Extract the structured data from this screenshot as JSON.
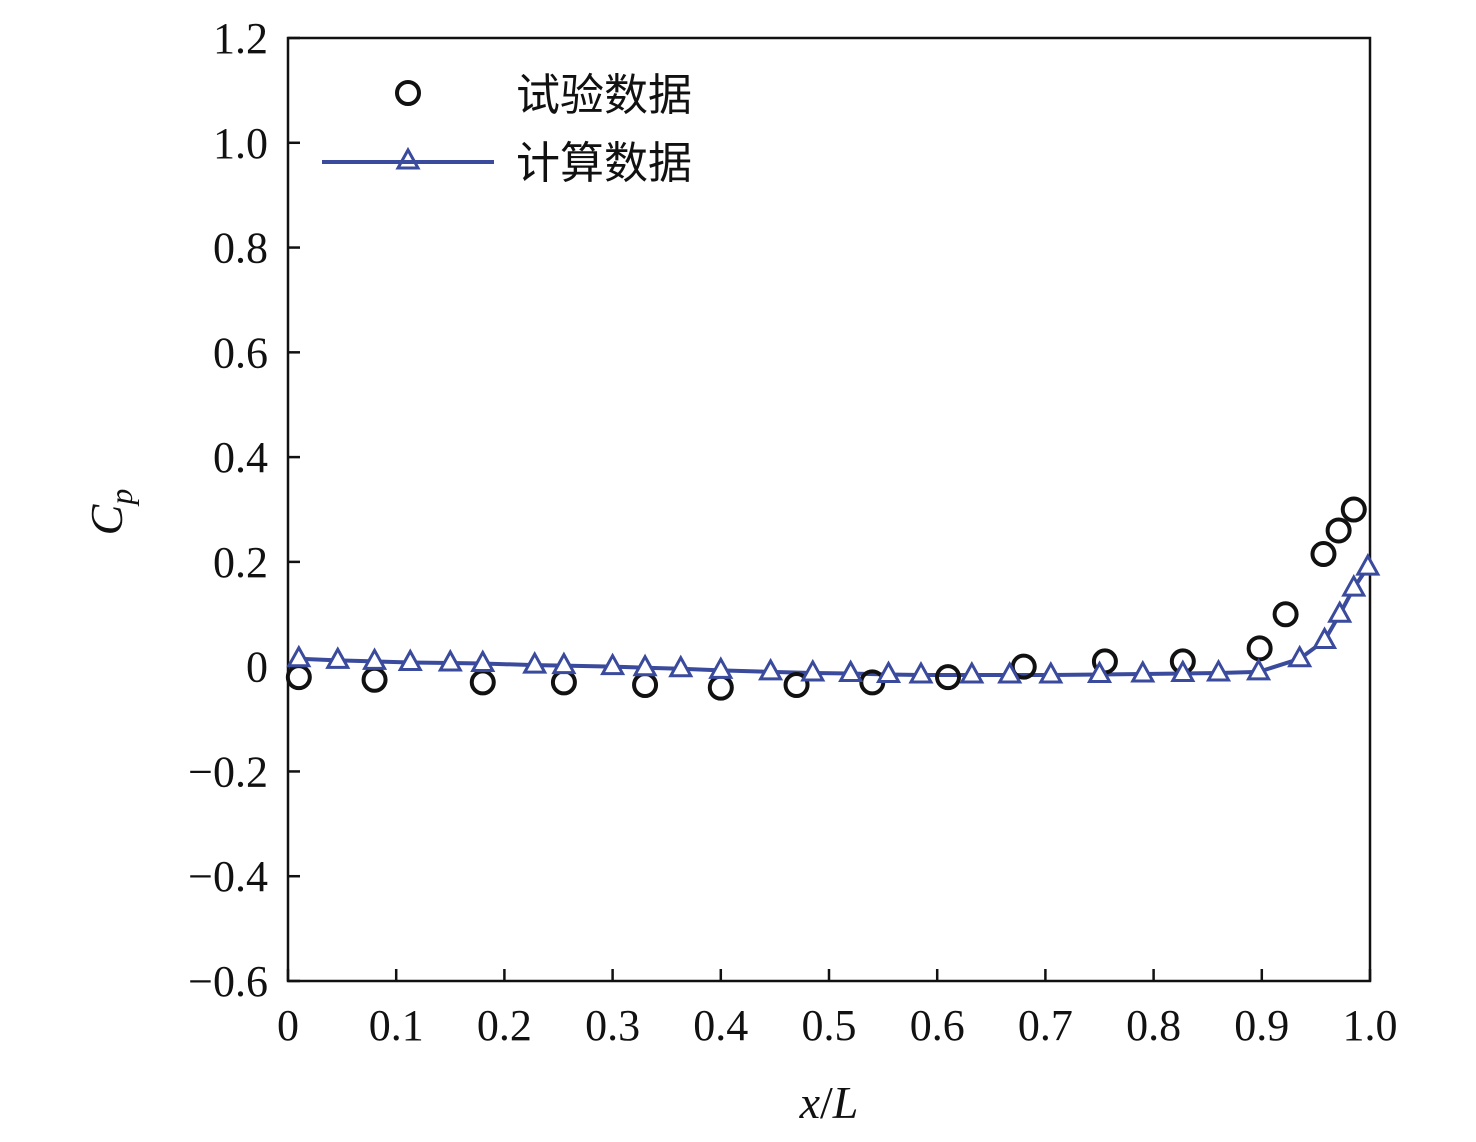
{
  "chart_data": {
    "type": "line",
    "xlabel_main": "x",
    "xlabel_sep": "/",
    "xlabel_unit": "L",
    "ylabel_main": "C",
    "ylabel_sub": "p",
    "xlim": [
      0,
      1.0
    ],
    "ylim": [
      -0.6,
      1.2
    ],
    "xticks": [
      0,
      0.1,
      0.2,
      0.3,
      0.4,
      0.5,
      0.6,
      0.7,
      0.8,
      0.9,
      1.0
    ],
    "xtick_labels": [
      "0",
      "0.1",
      "0.2",
      "0.3",
      "0.4",
      "0.5",
      "0.6",
      "0.7",
      "0.8",
      "0.9",
      "1.0"
    ],
    "yticks": [
      -0.6,
      -0.4,
      -0.2,
      0,
      0.2,
      0.4,
      0.6,
      0.8,
      1.0,
      1.2
    ],
    "ytick_labels": [
      "−0.6",
      "−0.4",
      "−0.2",
      "0",
      "0.2",
      "0.4",
      "0.6",
      "0.8",
      "1.0",
      "1.2"
    ],
    "grid": false,
    "legend_position": "top-left",
    "series": [
      {
        "name": "试验数据",
        "marker": "circle",
        "line": false,
        "color": "#111111",
        "x": [
          0.01,
          0.08,
          0.18,
          0.255,
          0.33,
          0.4,
          0.47,
          0.54,
          0.61,
          0.68,
          0.755,
          0.827,
          0.898,
          0.922,
          0.957,
          0.971,
          0.985
        ],
        "y": [
          -0.02,
          -0.025,
          -0.03,
          -0.03,
          -0.035,
          -0.04,
          -0.035,
          -0.03,
          -0.02,
          0.0,
          0.01,
          0.01,
          0.035,
          0.1,
          0.215,
          0.26,
          0.3
        ]
      },
      {
        "name": "计算数据",
        "marker": "triangle",
        "line": true,
        "color": "#3a4a9c",
        "x": [
          0.01,
          0.046,
          0.08,
          0.113,
          0.15,
          0.18,
          0.228,
          0.255,
          0.3,
          0.33,
          0.363,
          0.4,
          0.446,
          0.485,
          0.52,
          0.555,
          0.585,
          0.632,
          0.667,
          0.705,
          0.75,
          0.79,
          0.827,
          0.86,
          0.897,
          0.935,
          0.958,
          0.972,
          0.985,
          0.998
        ],
        "y": [
          0.015,
          0.012,
          0.01,
          0.008,
          0.007,
          0.006,
          0.003,
          0.002,
          0.0,
          -0.002,
          -0.004,
          -0.007,
          -0.01,
          -0.012,
          -0.013,
          -0.015,
          -0.016,
          -0.016,
          -0.016,
          -0.016,
          -0.015,
          -0.014,
          -0.013,
          -0.012,
          -0.01,
          0.015,
          0.05,
          0.1,
          0.15,
          0.19
        ]
      }
    ]
  }
}
